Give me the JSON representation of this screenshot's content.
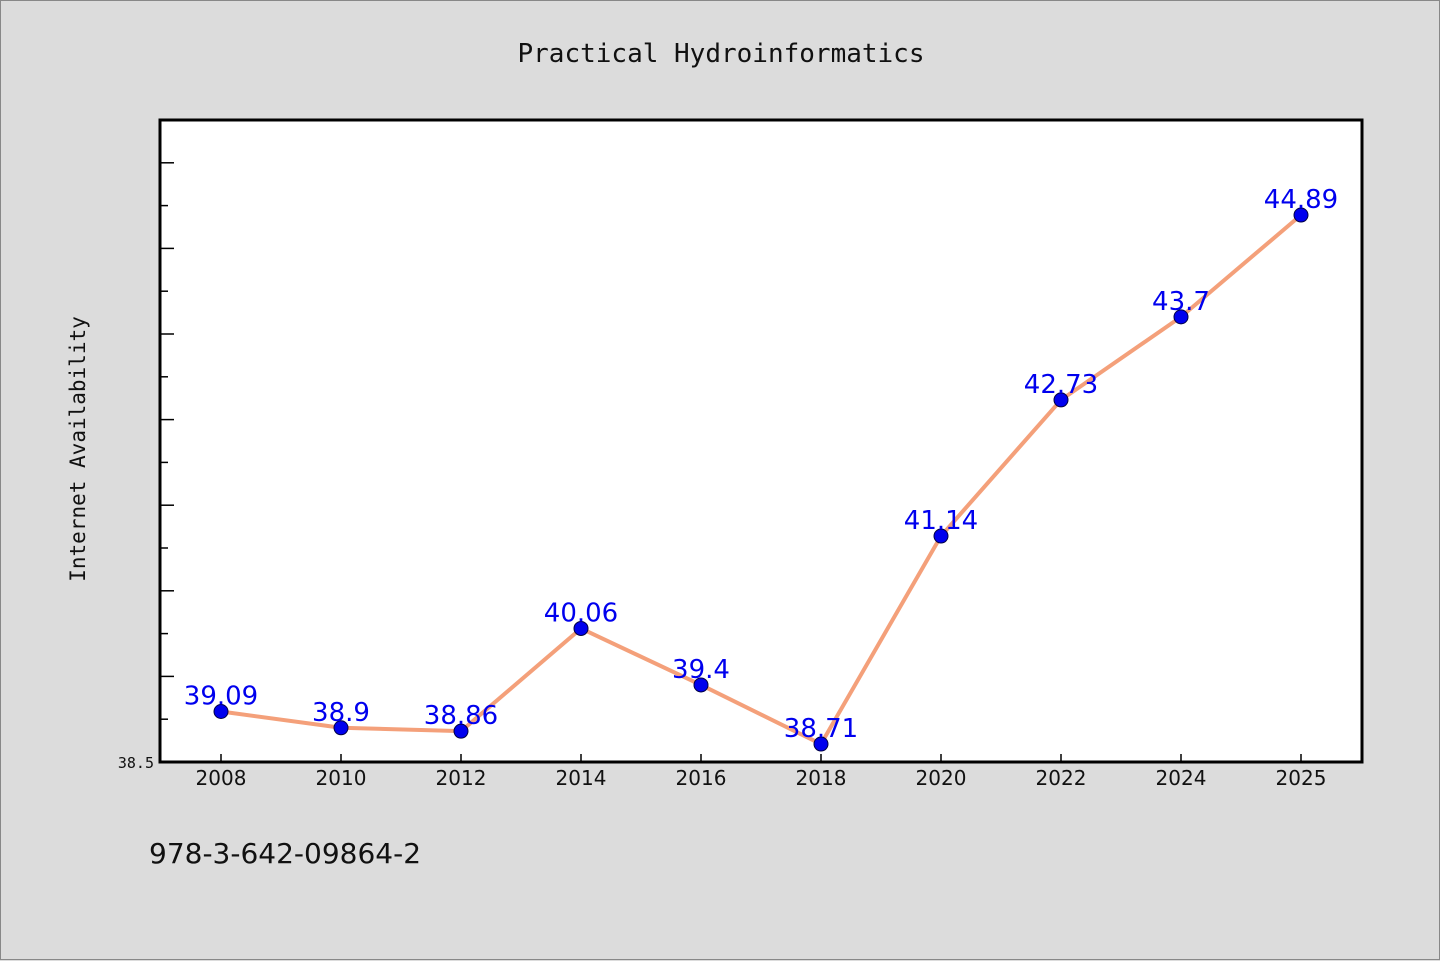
{
  "chart_data": {
    "type": "line",
    "title": "Practical Hydroinformatics",
    "xlabel": "",
    "ylabel": "Internet Availability",
    "categories": [
      "2008",
      "2010",
      "2012",
      "2014",
      "2016",
      "2018",
      "2020",
      "2022",
      "2024",
      "2025"
    ],
    "series": [
      {
        "values": [
          39.09,
          38.9,
          38.86,
          40.06,
          39.4,
          38.71,
          41.14,
          42.73,
          43.7,
          44.89
        ],
        "data_labels": [
          "39.09",
          "38.9",
          "38.86",
          "40.06",
          "39.4",
          "38.71",
          "41.14",
          "42.73",
          "43.7",
          "44.89"
        ],
        "line_color": "#f4a07a",
        "marker_color": "#0000ee"
      }
    ],
    "ylim": [
      38.5,
      46.0
    ],
    "y_tick_label": "38.5",
    "grid": false,
    "legend": "none",
    "label_color": "#0000ee"
  },
  "footer": {
    "isbn": "978-3-642-09864-2"
  },
  "colors": {
    "background": "#dcdcdc",
    "plot_background": "#ffffff",
    "axis": "#000000"
  }
}
